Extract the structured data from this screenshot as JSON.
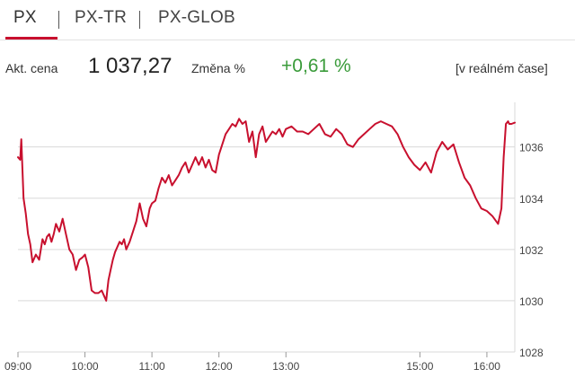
{
  "tabs": [
    {
      "label": "PX",
      "active": true
    },
    {
      "label": "PX-TR",
      "active": false
    },
    {
      "label": "PX-GLOB",
      "active": false
    }
  ],
  "quote": {
    "price_label": "Akt. cena",
    "price_value": "1 037,27",
    "change_label": "Změna %",
    "change_value": "+0,61 %",
    "realtime_label": "[v reálném čase]"
  },
  "colors": {
    "accent": "#c8102e",
    "positive": "#3a9b3a",
    "grid": "#d9d9d9"
  },
  "chart_data": {
    "type": "line",
    "title": "",
    "xlabel": "",
    "ylabel": "",
    "grid": true,
    "ylim": [
      1028,
      1037.6
    ],
    "xlim": [
      "09:00",
      "16:25"
    ],
    "y_ticks": [
      {
        "value": 1028,
        "label": "1028"
      },
      {
        "value": 1030,
        "label": "1030"
      },
      {
        "value": 1032,
        "label": "1032"
      },
      {
        "value": 1034,
        "label": "1034"
      },
      {
        "value": 1036,
        "label": "1036"
      }
    ],
    "x_ticks": [
      "09:00",
      "10:00",
      "11:00",
      "12:00",
      "13:00",
      "15:00",
      "16:00"
    ],
    "series": [
      {
        "color": "#c8102e",
        "x": [
          "09:00",
          "09:02",
          "09:03",
          "09:05",
          "09:07",
          "09:09",
          "09:11",
          "09:13",
          "09:16",
          "09:19",
          "09:22",
          "09:24",
          "09:26",
          "09:28",
          "09:30",
          "09:32",
          "09:34",
          "09:37",
          "09:40",
          "09:43",
          "09:46",
          "09:49",
          "09:52",
          "09:55",
          "09:58",
          "10:00",
          "10:03",
          "10:06",
          "10:09",
          "10:12",
          "10:15",
          "10:17",
          "10:19",
          "10:20",
          "10:21",
          "10:23",
          "10:25",
          "10:27",
          "10:29",
          "10:31",
          "10:33",
          "10:35",
          "10:37",
          "10:40",
          "10:43",
          "10:46",
          "10:49",
          "10:52",
          "10:55",
          "10:58",
          "11:00",
          "11:03",
          "11:06",
          "11:09",
          "11:12",
          "11:15",
          "11:18",
          "11:21",
          "11:24",
          "11:27",
          "11:30",
          "11:33",
          "11:36",
          "11:39",
          "11:42",
          "11:45",
          "11:48",
          "11:51",
          "11:54",
          "11:57",
          "12:00",
          "12:03",
          "12:06",
          "12:09",
          "12:12",
          "12:15",
          "12:18",
          "12:21",
          "12:24",
          "12:27",
          "12:30",
          "12:33",
          "12:36",
          "12:39",
          "12:42",
          "12:45",
          "12:48",
          "12:51",
          "12:54",
          "12:57",
          "13:00",
          "13:05",
          "13:10",
          "13:15",
          "13:20",
          "13:25",
          "13:30",
          "13:35",
          "13:40",
          "13:45",
          "13:50",
          "13:55",
          "14:00",
          "14:05",
          "14:10",
          "14:15",
          "14:20",
          "14:25",
          "14:30",
          "14:35",
          "14:40",
          "14:45",
          "14:50",
          "14:55",
          "15:00",
          "15:05",
          "15:10",
          "15:15",
          "15:20",
          "15:25",
          "15:30",
          "15:35",
          "15:40",
          "15:45",
          "15:50",
          "15:55",
          "16:00",
          "16:05",
          "16:10",
          "16:13",
          "16:15",
          "16:17",
          "16:19",
          "16:20",
          "16:22",
          "16:25"
        ],
        "values": [
          1035.6,
          1035.5,
          1036.3,
          1034.0,
          1033.4,
          1032.6,
          1032.2,
          1031.5,
          1031.8,
          1031.6,
          1032.4,
          1032.2,
          1032.5,
          1032.6,
          1032.3,
          1032.6,
          1033.0,
          1032.7,
          1033.2,
          1032.6,
          1032.0,
          1031.8,
          1031.2,
          1031.6,
          1031.7,
          1031.8,
          1031.3,
          1030.4,
          1030.3,
          1030.3,
          1030.4,
          1030.2,
          1030.0,
          1030.4,
          1030.8,
          1031.2,
          1031.6,
          1031.9,
          1032.1,
          1032.3,
          1032.2,
          1032.4,
          1032.0,
          1032.3,
          1032.7,
          1033.1,
          1033.8,
          1033.2,
          1032.9,
          1033.6,
          1033.8,
          1033.9,
          1034.4,
          1034.8,
          1034.6,
          1034.9,
          1034.5,
          1034.7,
          1034.9,
          1035.2,
          1035.4,
          1035.0,
          1035.3,
          1035.6,
          1035.3,
          1035.6,
          1035.2,
          1035.5,
          1035.1,
          1035.0,
          1035.7,
          1036.1,
          1036.5,
          1036.7,
          1036.9,
          1036.8,
          1037.1,
          1036.9,
          1037.0,
          1036.2,
          1036.6,
          1035.6,
          1036.5,
          1036.8,
          1036.2,
          1036.4,
          1036.6,
          1036.5,
          1036.7,
          1036.4,
          1036.7,
          1036.8,
          1036.6,
          1036.6,
          1036.5,
          1036.7,
          1036.9,
          1036.5,
          1036.4,
          1036.7,
          1036.5,
          1036.1,
          1036.0,
          1036.3,
          1036.5,
          1036.7,
          1036.9,
          1037.0,
          1036.9,
          1036.8,
          1036.5,
          1036.0,
          1035.6,
          1035.3,
          1035.1,
          1035.4,
          1035.0,
          1035.8,
          1036.2,
          1035.9,
          1036.1,
          1035.4,
          1034.8,
          1034.5,
          1034.0,
          1033.6,
          1033.5,
          1033.3,
          1033.0,
          1033.6,
          1035.6,
          1036.9,
          1037.0,
          1036.9,
          1036.9,
          1036.95
        ]
      }
    ]
  }
}
